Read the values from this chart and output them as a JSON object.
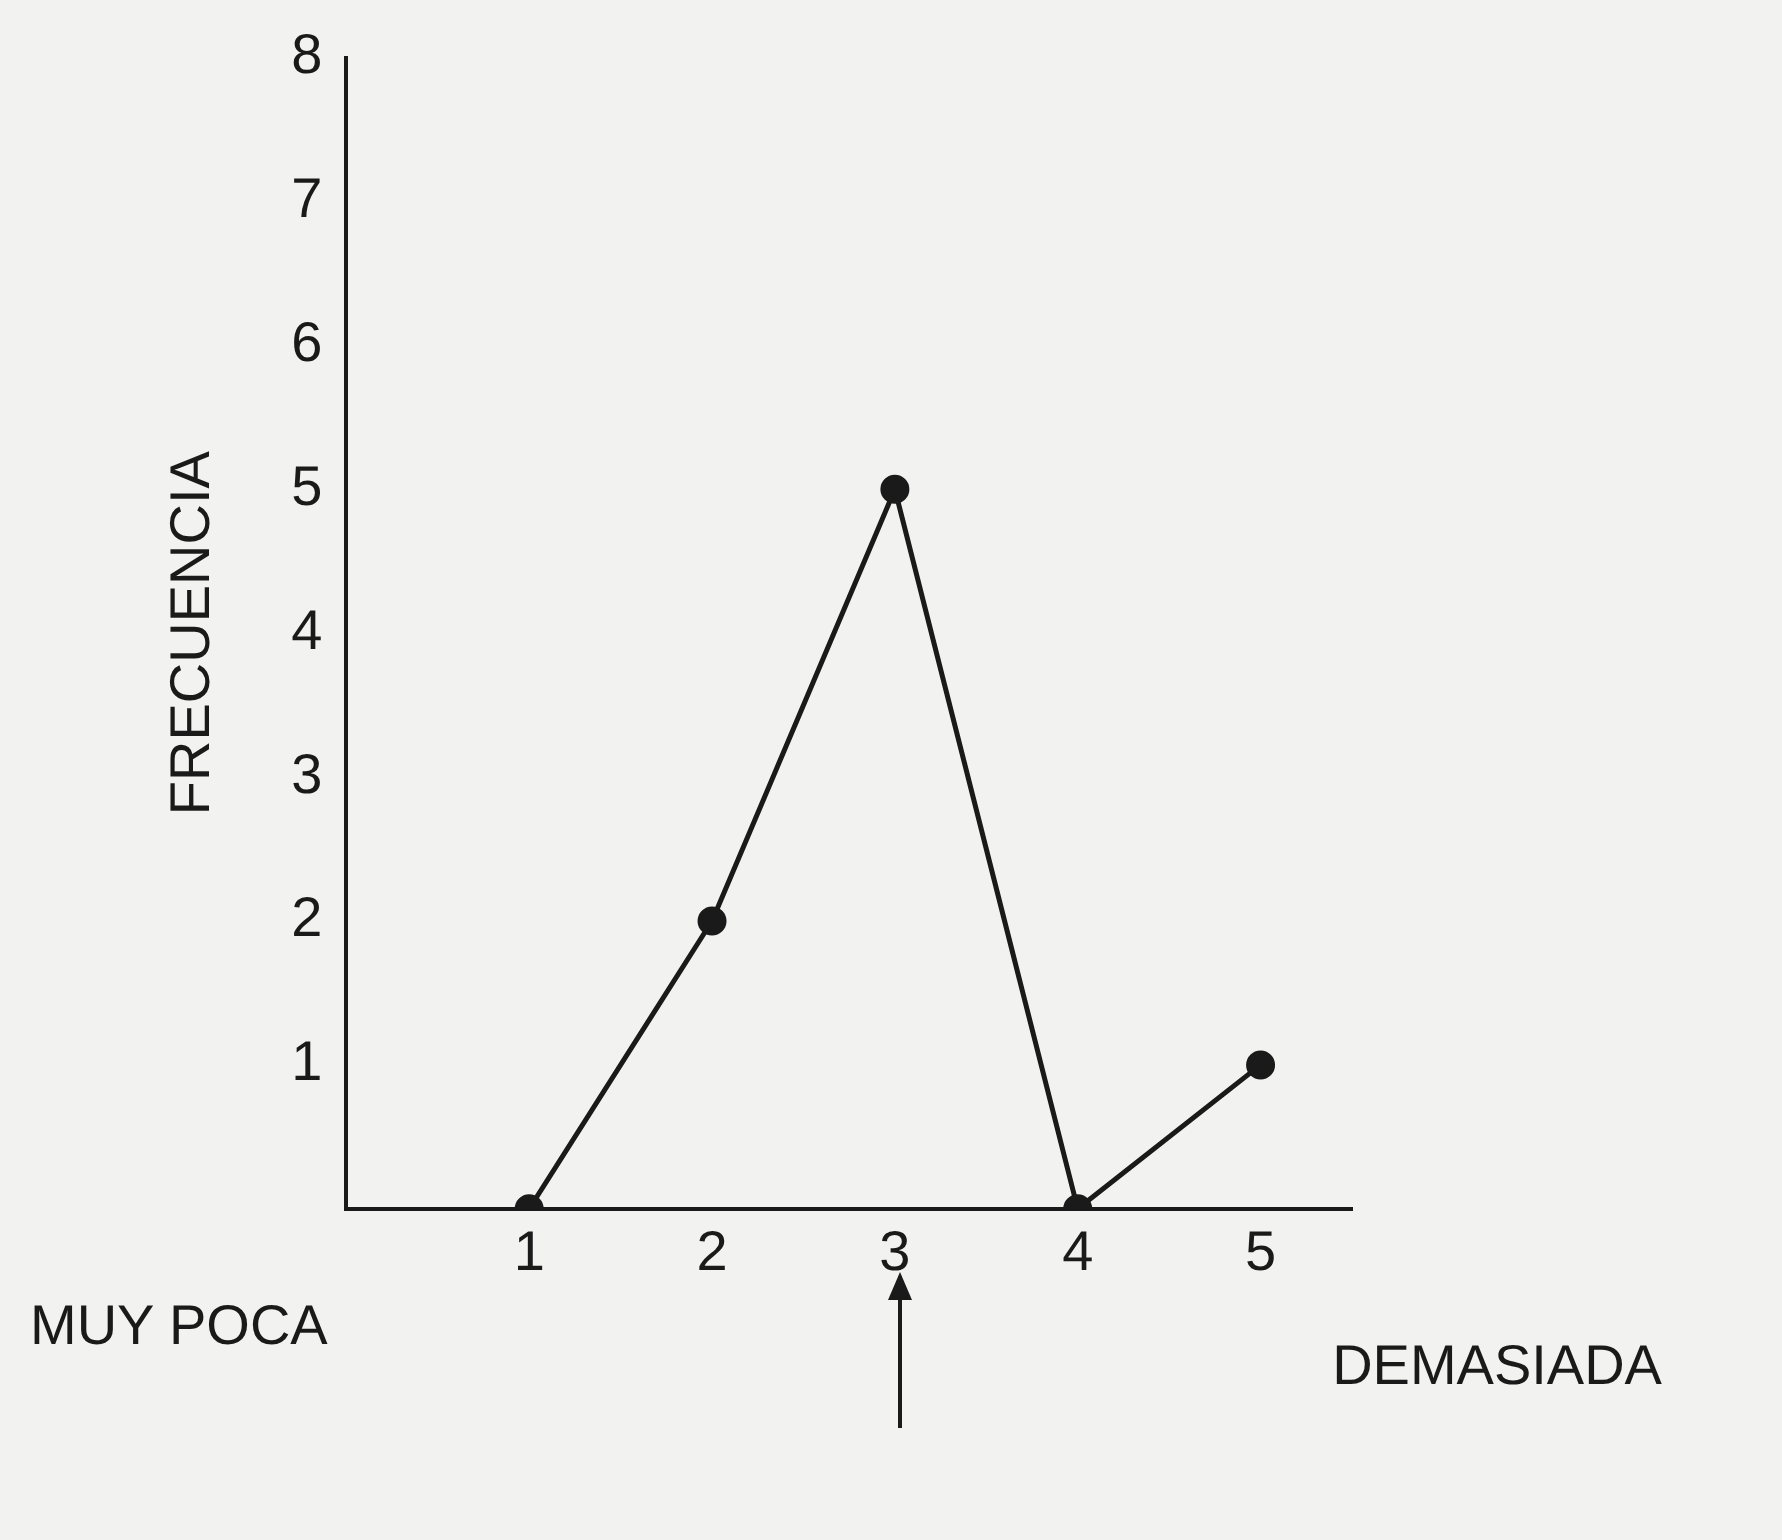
{
  "chart_data": {
    "type": "line",
    "ylabel": "FRECUENCIA",
    "x": [
      1,
      2,
      3,
      4,
      5
    ],
    "series": [
      {
        "color": "#1a1a1a",
        "values": [
          0,
          2,
          5,
          0,
          1
        ]
      }
    ],
    "xlim": [
      0,
      5.5
    ],
    "xticks": [
      1,
      2,
      3,
      4,
      5
    ],
    "ylim": [
      0,
      8
    ],
    "yticks": [
      {
        "value": 0,
        "label": null
      },
      1,
      2,
      3,
      4,
      5,
      6,
      7,
      8
    ],
    "annotations": [
      "MUY POCA",
      "DEMASIADA"
    ],
    "grid": false,
    "legend": false,
    "marker": "circle",
    "line_style": "solid"
  }
}
